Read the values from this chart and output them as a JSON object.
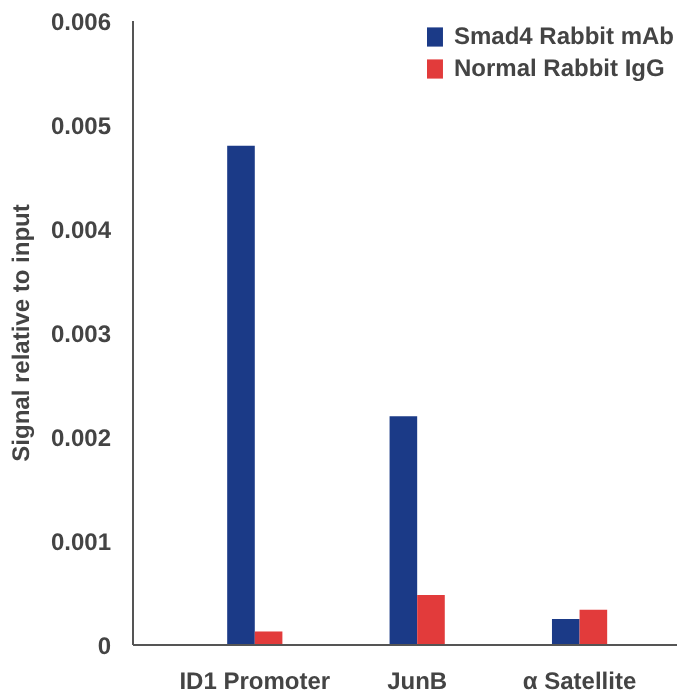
{
  "chart_data": {
    "type": "bar",
    "ylabel": "Signal relative to input",
    "categories": [
      "ID1 Promoter",
      "JunB",
      "α Satellite"
    ],
    "series": [
      {
        "name": "Smad4 Rabbit mAb",
        "color": "#1b3a87",
        "values": [
          0.0048,
          0.0022,
          0.00025
        ]
      },
      {
        "name": "Normal Rabbit IgG",
        "color": "#e23b3b",
        "values": [
          0.00013,
          0.00048,
          0.00034
        ]
      }
    ],
    "ylim": [
      0,
      0.006
    ],
    "yticks": [
      0,
      0.001,
      0.002,
      0.003,
      0.004,
      0.005,
      0.006
    ],
    "grid": false,
    "legend": "top right"
  }
}
